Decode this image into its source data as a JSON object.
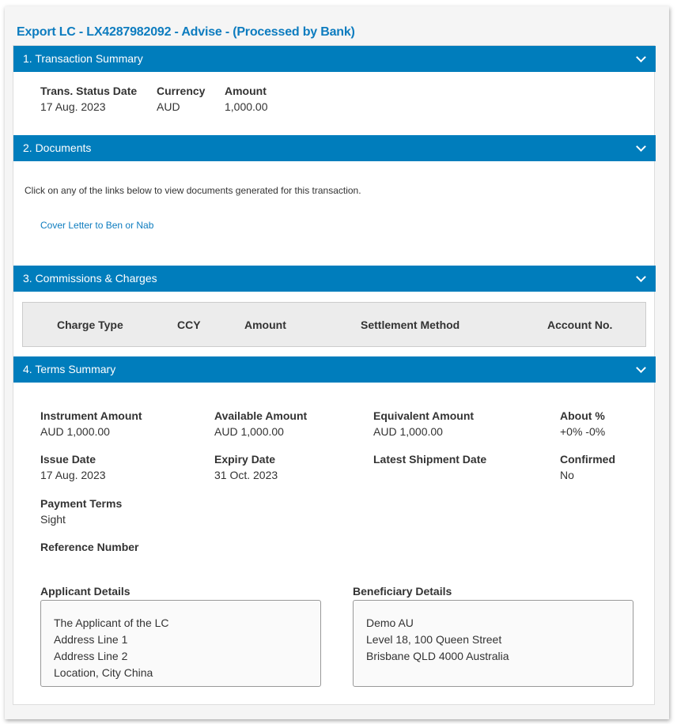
{
  "title": "Export LC - LX4287982092 - Advise - (Processed by Bank)",
  "sections": {
    "s1": {
      "label": "1. Transaction Summary",
      "fields": [
        {
          "label": "Trans. Status Date",
          "value": "17 Aug. 2023"
        },
        {
          "label": "Currency",
          "value": "AUD"
        },
        {
          "label": "Amount",
          "value": "1,000.00"
        }
      ]
    },
    "s2": {
      "label": "2. Documents",
      "instruction": "Click on any of the links below to view documents generated for this transaction.",
      "link": "Cover Letter to Ben or Nab"
    },
    "s3": {
      "label": "3. Commissions & Charges",
      "columns": [
        "Charge Type",
        "CCY",
        "Amount",
        "Settlement Method",
        "Account No."
      ]
    },
    "s4": {
      "label": "4. Terms Summary",
      "fields": [
        {
          "label": "Instrument Amount",
          "value": "AUD 1,000.00"
        },
        {
          "label": "Available Amount",
          "value": "AUD 1,000.00"
        },
        {
          "label": "Equivalent Amount",
          "value": "AUD 1,000.00"
        },
        {
          "label": "About %",
          "value": "+0% -0%"
        },
        {
          "label": "Issue Date",
          "value": "17 Aug. 2023"
        },
        {
          "label": "Expiry Date",
          "value": "31 Oct. 2023"
        },
        {
          "label": "Latest Shipment Date",
          "value": ""
        },
        {
          "label": "Confirmed",
          "value": "No"
        },
        {
          "label": "Payment Terms",
          "value": "Sight"
        },
        {
          "label": "Reference Number",
          "value": ""
        }
      ],
      "applicant": {
        "label": "Applicant Details",
        "lines": [
          "The Applicant of the LC",
          "Address Line 1",
          "Address Line 2",
          "Location, City China"
        ]
      },
      "beneficiary": {
        "label": "Beneficiary Details",
        "lines": [
          "Demo AU",
          "Level 18, 100 Queen Street",
          "Brisbane QLD 4000 Australia"
        ]
      }
    }
  }
}
